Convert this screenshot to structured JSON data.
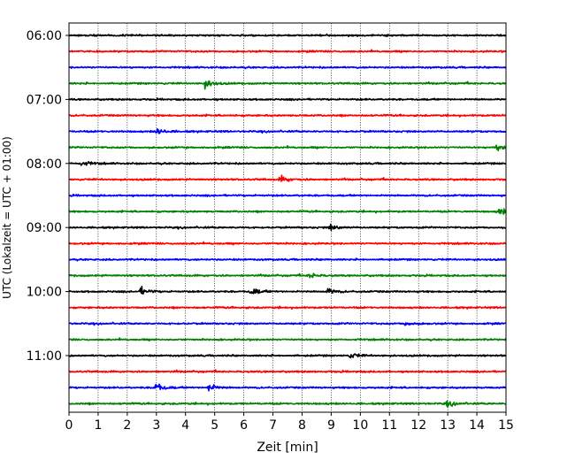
{
  "chart_data": {
    "type": "line",
    "title": "",
    "xlabel": "Zeit  [min]",
    "ylabel": "UTC (Lokalzeit = UTC + 01:00)",
    "xlim": [
      0,
      15
    ],
    "x_ticks": [
      "0",
      "1",
      "2",
      "3",
      "4",
      "5",
      "6",
      "7",
      "8",
      "9",
      "10",
      "11",
      "12",
      "13",
      "14",
      "15"
    ],
    "y_tick_labels": [
      "06:00",
      "07:00",
      "08:00",
      "09:00",
      "10:00",
      "11:00"
    ],
    "y_tick_rows": [
      0,
      4,
      8,
      12,
      16,
      20
    ],
    "grid": "vertical dotted",
    "row_colors": [
      "#000000",
      "#ff0000",
      "#0000ff",
      "#008000"
    ],
    "rows": [
      {
        "start": "06:00",
        "color": "black",
        "events": []
      },
      {
        "start": "06:15",
        "color": "red",
        "events": []
      },
      {
        "start": "06:30",
        "color": "blue",
        "events": []
      },
      {
        "start": "06:45",
        "color": "green",
        "events": [
          {
            "t": 4.7,
            "amp": 0.45
          }
        ]
      },
      {
        "start": "07:00",
        "color": "black",
        "events": []
      },
      {
        "start": "07:15",
        "color": "red",
        "events": []
      },
      {
        "start": "07:30",
        "color": "blue",
        "events": [
          {
            "t": 3.05,
            "amp": 0.35
          }
        ]
      },
      {
        "start": "07:45",
        "color": "green",
        "events": [
          {
            "t": 14.7,
            "amp": 0.3
          }
        ]
      },
      {
        "start": "08:00",
        "color": "black",
        "events": [
          {
            "t": 0.45,
            "amp": 0.3
          }
        ]
      },
      {
        "start": "08:15",
        "color": "red",
        "events": [
          {
            "t": 7.3,
            "amp": 0.3
          }
        ]
      },
      {
        "start": "08:30",
        "color": "blue",
        "events": []
      },
      {
        "start": "08:45",
        "color": "green",
        "events": [
          {
            "t": 14.8,
            "amp": 0.35
          }
        ]
      },
      {
        "start": "09:00",
        "color": "black",
        "events": [
          {
            "t": 9.0,
            "amp": 0.3
          }
        ]
      },
      {
        "start": "09:15",
        "color": "red",
        "events": []
      },
      {
        "start": "09:30",
        "color": "blue",
        "events": []
      },
      {
        "start": "09:45",
        "color": "green",
        "events": [
          {
            "t": 8.3,
            "amp": 0.25
          }
        ]
      },
      {
        "start": "10:00",
        "color": "black",
        "events": [
          {
            "t": 2.5,
            "amp": 0.35
          },
          {
            "t": 6.3,
            "amp": 0.35
          },
          {
            "t": 8.9,
            "amp": 0.3
          }
        ]
      },
      {
        "start": "10:15",
        "color": "red",
        "events": []
      },
      {
        "start": "10:30",
        "color": "blue",
        "events": [
          {
            "t": 11.6,
            "amp": 0.25
          }
        ]
      },
      {
        "start": "10:45",
        "color": "green",
        "events": []
      },
      {
        "start": "11:00",
        "color": "black",
        "events": [
          {
            "t": 9.7,
            "amp": 0.25
          }
        ]
      },
      {
        "start": "11:15",
        "color": "red",
        "events": []
      },
      {
        "start": "11:30",
        "color": "blue",
        "events": [
          {
            "t": 3.0,
            "amp": 0.45
          },
          {
            "t": 4.8,
            "amp": 0.4
          }
        ]
      },
      {
        "start": "11:45",
        "color": "green",
        "events": [
          {
            "t": 13.0,
            "amp": 0.25
          }
        ]
      }
    ]
  }
}
